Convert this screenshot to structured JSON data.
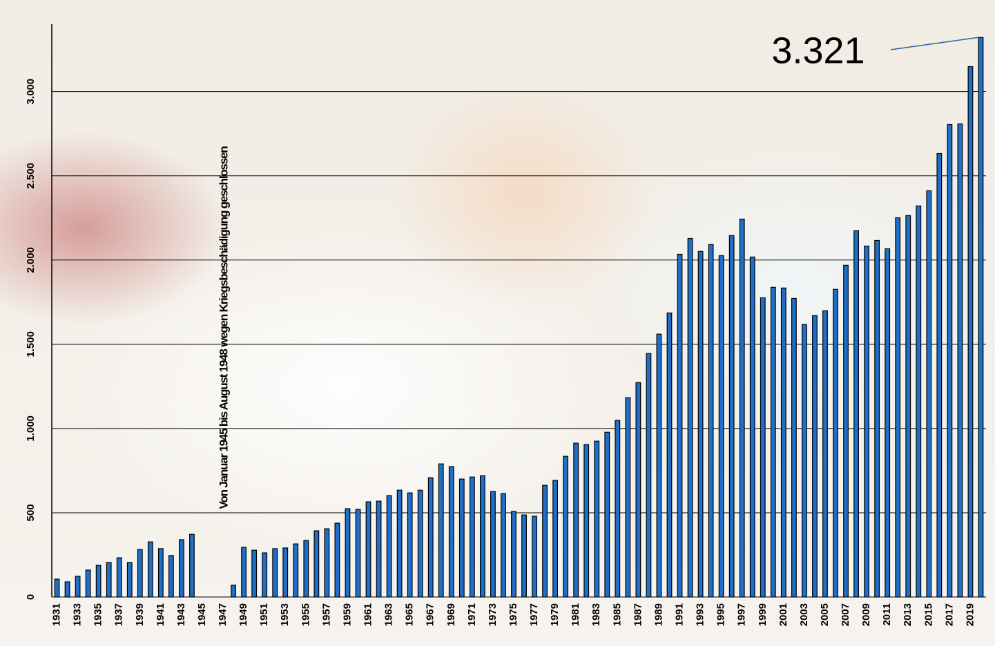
{
  "chart_data": {
    "type": "bar",
    "annotation": "Von Januar 1945 bis August 1948 wegen Kriegsbeschädigung geschlossen",
    "categories": [
      "1931",
      null,
      "1933",
      null,
      "1935",
      null,
      "1937",
      null,
      "1939",
      null,
      "1941",
      null,
      "1943",
      null,
      "1945",
      null,
      "1947",
      null,
      "1949",
      null,
      "1951",
      null,
      "1953",
      null,
      "1955",
      null,
      "1957",
      null,
      "1959",
      null,
      "1961",
      null,
      "1963",
      null,
      "1965",
      null,
      "1967",
      null,
      "1969",
      null,
      "1971",
      null,
      "1973",
      null,
      "1975",
      null,
      "1977",
      null,
      "1979",
      null,
      "1981",
      null,
      "1983",
      null,
      "1985",
      null,
      "1987",
      null,
      "1989",
      null,
      "1991",
      null,
      "1993",
      null,
      "1995",
      null,
      "1997",
      null,
      "1999",
      null,
      "2001",
      null,
      "2003",
      null,
      "2005",
      null,
      "2007",
      null,
      "2009",
      null,
      "2011",
      null,
      "2013",
      null,
      "2015",
      null,
      "2017",
      null,
      "2019",
      null
    ],
    "values": [
      106,
      90,
      123,
      160,
      188,
      205,
      233,
      205,
      282,
      327,
      287,
      246,
      340,
      372,
      null,
      null,
      null,
      70,
      295,
      278,
      262,
      287,
      291,
      315,
      336,
      393,
      405,
      438,
      524,
      520,
      565,
      569,
      602,
      634,
      618,
      634,
      708,
      790,
      774,
      700,
      712,
      720,
      626,
      614,
      508,
      487,
      479,
      663,
      692,
      835,
      913,
      905,
      925,
      978,
      1048,
      1183,
      1273,
      1445,
      1560,
      1686,
      2034,
      2128,
      2051,
      2092,
      2026,
      2145,
      2243,
      2018,
      1776,
      1838,
      1834,
      1772,
      1617,
      1670,
      1699,
      1826,
      1969,
      2174,
      2083,
      2116,
      2067,
      2251,
      2264,
      2321,
      2411,
      2632,
      2804,
      2808,
      3148,
      3321
    ],
    "value_labels": [
      null,
      null,
      null,
      null,
      null,
      null,
      null,
      null,
      null,
      null,
      null,
      null,
      null,
      null,
      null,
      null,
      null,
      null,
      null,
      null,
      null,
      null,
      null,
      null,
      null,
      null,
      null,
      null,
      null,
      null,
      null,
      null,
      null,
      null,
      null,
      null,
      null,
      null,
      null,
      null,
      null,
      null,
      null,
      null,
      null,
      null,
      null,
      null,
      null,
      null,
      null,
      null,
      null,
      null,
      null,
      null,
      null,
      null,
      null,
      null,
      null,
      null,
      null,
      null,
      null,
      null,
      null,
      null,
      null,
      null,
      null,
      null,
      null,
      null,
      null,
      null,
      null,
      null,
      null,
      null,
      null,
      null,
      null,
      null,
      null,
      null,
      null,
      null,
      null,
      "3.321"
    ],
    "color": "#1f6fc8",
    "ylim": [
      0,
      3400
    ],
    "yticks": [
      0,
      500,
      {
        "value": 1000,
        "label": "1.000"
      },
      {
        "value": 1500,
        "label": "1.500"
      },
      {
        "value": 2000,
        "label": "2.000"
      },
      {
        "value": 2500,
        "label": "2.500"
      },
      {
        "value": 3000,
        "label": "3.000"
      }
    ],
    "grid": true
  }
}
